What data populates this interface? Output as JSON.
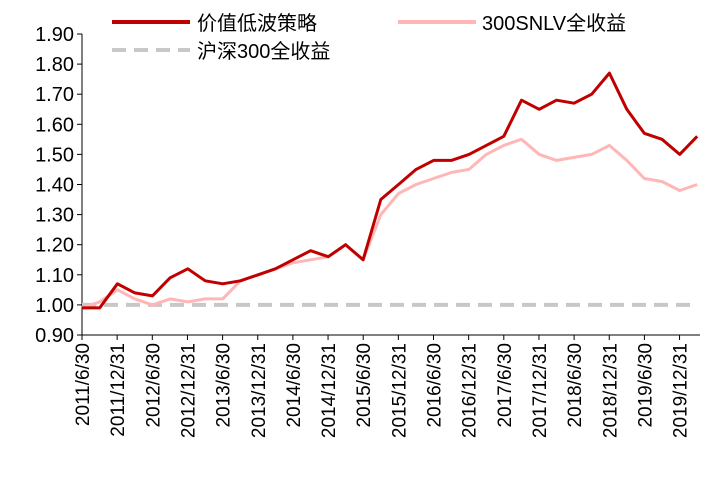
{
  "chart_data": {
    "type": "line",
    "title": "",
    "xlabel": "",
    "ylabel": "",
    "ylim": [
      0.9,
      1.9
    ],
    "yticks": [
      "0.90",
      "1.00",
      "1.10",
      "1.20",
      "1.30",
      "1.40",
      "1.50",
      "1.60",
      "1.70",
      "1.80",
      "1.90"
    ],
    "xticks": [
      "2011/6/30",
      "2011/12/31",
      "2012/6/30",
      "2012/12/31",
      "2013/6/30",
      "2013/12/31",
      "2014/6/30",
      "2014/12/31",
      "2015/6/30",
      "2015/12/31",
      "2016/6/30",
      "2016/12/31",
      "2017/6/30",
      "2017/12/31",
      "2018/6/30",
      "2018/12/31",
      "2019/6/30",
      "2019/12/31"
    ],
    "legend_position": "top",
    "x": [
      "2011/6/30",
      "2011/9/30",
      "2011/12/31",
      "2012/3/31",
      "2012/6/30",
      "2012/9/30",
      "2012/12/31",
      "2013/3/31",
      "2013/6/30",
      "2013/9/30",
      "2013/12/31",
      "2014/3/31",
      "2014/6/30",
      "2014/9/30",
      "2014/12/31",
      "2015/3/31",
      "2015/6/30",
      "2015/9/30",
      "2015/12/31",
      "2016/3/31",
      "2016/6/30",
      "2016/9/30",
      "2016/12/31",
      "2017/3/31",
      "2017/6/30",
      "2017/9/30",
      "2017/12/31",
      "2018/3/31",
      "2018/6/30",
      "2018/9/30",
      "2018/12/31",
      "2019/3/31",
      "2019/6/30",
      "2019/9/30",
      "2019/12/31",
      "2020/3/31"
    ],
    "series": [
      {
        "name": "价值低波策略",
        "color": "#c00000",
        "style": "solid",
        "values": [
          0.99,
          0.99,
          1.07,
          1.04,
          1.03,
          1.09,
          1.12,
          1.08,
          1.07,
          1.08,
          1.1,
          1.12,
          1.15,
          1.18,
          1.16,
          1.2,
          1.15,
          1.35,
          1.4,
          1.45,
          1.48,
          1.48,
          1.5,
          1.53,
          1.56,
          1.68,
          1.65,
          1.68,
          1.67,
          1.7,
          1.77,
          1.65,
          1.57,
          1.55,
          1.5,
          1.56
        ]
      },
      {
        "name": "300SNLV全收益",
        "color": "#ffb6b6",
        "style": "solid",
        "values": [
          0.99,
          1.01,
          1.05,
          1.02,
          1.0,
          1.02,
          1.01,
          1.02,
          1.02,
          1.08,
          1.1,
          1.12,
          1.14,
          1.15,
          1.16,
          1.2,
          1.15,
          1.3,
          1.37,
          1.4,
          1.42,
          1.44,
          1.45,
          1.5,
          1.53,
          1.55,
          1.5,
          1.48,
          1.49,
          1.5,
          1.53,
          1.48,
          1.42,
          1.41,
          1.38,
          1.4
        ]
      },
      {
        "name": "沪深300全收益",
        "color": "#c8c8c8",
        "style": "dashed",
        "values": [
          1.0,
          1.0,
          1.0,
          1.0,
          1.0,
          1.0,
          1.0,
          1.0,
          1.0,
          1.0,
          1.0,
          1.0,
          1.0,
          1.0,
          1.0,
          1.0,
          1.0,
          1.0,
          1.0,
          1.0,
          1.0,
          1.0,
          1.0,
          1.0,
          1.0,
          1.0,
          1.0,
          1.0,
          1.0,
          1.0,
          1.0,
          1.0,
          1.0,
          1.0,
          1.0,
          1.0
        ]
      }
    ]
  }
}
